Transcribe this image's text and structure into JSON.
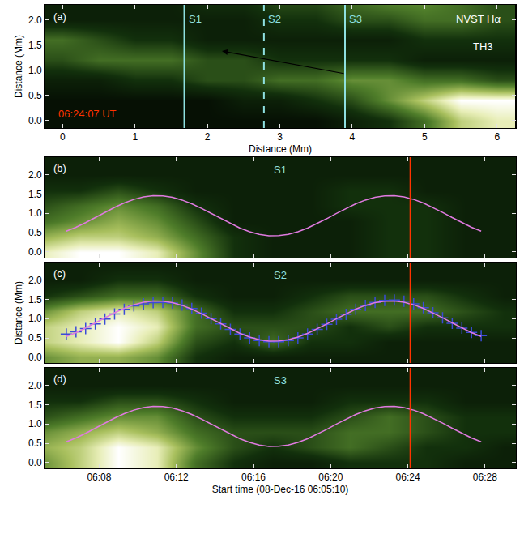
{
  "chart_data": [
    {
      "type": "heatmap",
      "panel_label": "(a)",
      "x_label": "Distance (Mm)",
      "y_label": "Distance (Mm)",
      "instrument_label": "NVST Hα",
      "feature_label": "TH3",
      "time_label": "06:24:07 UT",
      "time_label_color": "#ff3300",
      "xlim": [
        -0.25,
        6.26
      ],
      "ylim": [
        -0.15,
        2.3
      ],
      "xticks": [
        0,
        1,
        2,
        3,
        4,
        5,
        6
      ],
      "yticks": [
        {
          "value": 0,
          "label": "0.0"
        },
        0.5,
        {
          "value": 1,
          "label": "1.0"
        },
        1.5,
        {
          "value": 2,
          "label": "2.0"
        }
      ],
      "image": {
        "x": [
          0,
          0.5,
          1,
          1.5,
          2,
          2.5,
          3,
          3.5,
          4,
          4.5,
          5,
          5.5,
          6
        ],
        "y": [
          0,
          0.4,
          0.8,
          1.2,
          1.6,
          2.0,
          2.4
        ],
        "zlim": [
          0,
          10
        ],
        "z": [
          [
            1,
            1,
            1,
            1,
            1,
            1,
            1,
            1,
            2,
            3,
            5,
            8,
            9
          ],
          [
            1,
            1,
            1,
            1,
            1,
            2,
            2,
            3,
            4,
            6,
            8,
            10,
            10
          ],
          [
            2,
            2,
            3,
            3,
            4,
            4,
            5,
            5,
            6,
            6,
            5,
            5,
            4
          ],
          [
            4,
            5,
            5,
            5,
            4,
            4,
            3,
            3,
            3,
            3,
            2,
            2,
            2
          ],
          [
            5,
            4,
            3,
            3,
            2,
            2,
            2,
            2,
            2,
            2,
            3,
            3,
            3
          ],
          [
            2,
            2,
            2,
            2,
            2,
            2,
            3,
            3,
            4,
            4,
            5,
            5,
            4
          ],
          [
            2,
            2,
            2,
            2,
            3,
            3,
            4,
            4,
            5,
            6,
            6,
            5,
            4
          ]
        ]
      },
      "vertical_lines": [
        {
          "x": 1.68,
          "label": "S1",
          "line_style": "solid",
          "color": "#8ee0e0"
        },
        {
          "x": 2.78,
          "label": "S2",
          "line_style": "dashed",
          "color": "#8ee0e0"
        },
        {
          "x": 3.9,
          "label": "S3",
          "line_style": "solid",
          "color": "#8ee0e0"
        }
      ],
      "arrow": {
        "from": [
          3.9,
          0.93
        ],
        "to": [
          2.2,
          1.38
        ]
      }
    },
    {
      "type": "heatmap",
      "panel_label": "(b)",
      "slit_label": "S1",
      "slit_label_color": "#8ee0e0",
      "tick_labels": "y",
      "xlim": [
        5.17,
        29.6
      ],
      "ylim": [
        -0.15,
        2.45
      ],
      "xticks": [
        {
          "value": 8,
          "label": "06:08"
        },
        {
          "value": 12,
          "label": "06:12"
        },
        {
          "value": 16,
          "label": "06:16"
        },
        {
          "value": 20,
          "label": "06:20"
        },
        {
          "value": 24,
          "label": "06:24"
        },
        {
          "value": 28,
          "label": "06:28"
        }
      ],
      "yticks": [
        {
          "value": 0,
          "label": "0.0"
        },
        0.5,
        {
          "value": 1,
          "label": "1.0"
        },
        1.5,
        {
          "value": 2,
          "label": "2.0"
        }
      ],
      "image": {
        "x": [
          5,
          7,
          9,
          11,
          13,
          15,
          17,
          19,
          21,
          23,
          25,
          27,
          29
        ],
        "y": [
          0,
          0.4,
          0.8,
          1.2,
          1.6,
          2.0,
          2.4
        ],
        "zlim": [
          0,
          10
        ],
        "z": [
          [
            9,
            10,
            10,
            9,
            6,
            3,
            2,
            2,
            2,
            3,
            3,
            2,
            2
          ],
          [
            7,
            8,
            8,
            7,
            5,
            3,
            2,
            2,
            2,
            3,
            3,
            2,
            2
          ],
          [
            5,
            6,
            7,
            6,
            4,
            2,
            2,
            2,
            2,
            3,
            3,
            2,
            2
          ],
          [
            4,
            5,
            6,
            5,
            3,
            2,
            2,
            2,
            3,
            3,
            3,
            2,
            2
          ],
          [
            3,
            3,
            4,
            3,
            2,
            2,
            2,
            2,
            3,
            3,
            2,
            2,
            2
          ],
          [
            2,
            2,
            2,
            2,
            2,
            2,
            2,
            2,
            2,
            2,
            2,
            2,
            2
          ],
          [
            2,
            2,
            2,
            2,
            2,
            2,
            2,
            2,
            2,
            2,
            2,
            2,
            2
          ]
        ]
      },
      "x": [
        6.3,
        6.8,
        7.3,
        7.8,
        8.3,
        8.8,
        9.3,
        9.8,
        10.3,
        10.8,
        11.3,
        11.8,
        12.3,
        12.8,
        13.3,
        13.8,
        14.3,
        14.8,
        15.3,
        15.8,
        16.3,
        16.8,
        17.3,
        17.8,
        18.3,
        18.8,
        19.3,
        19.8,
        20.3,
        20.8,
        21.3,
        21.8,
        22.3,
        22.8,
        23.3,
        23.8,
        24.3,
        24.8,
        25.3,
        25.8,
        26.3,
        26.8,
        27.3,
        27.8
      ],
      "series": [
        {
          "type": "line",
          "line_style": "solid",
          "color": "#e07ae0",
          "values": [
            0.537,
            0.637,
            0.757,
            0.888,
            1.022,
            1.151,
            1.265,
            1.357,
            1.421,
            1.452,
            1.449,
            1.411,
            1.341,
            1.244,
            1.126,
            0.995,
            0.861,
            0.731,
            0.616,
            0.521,
            0.454,
            0.419,
            0.42,
            0.455,
            0.522,
            0.617,
            0.732,
            0.861,
            0.996,
            1.126,
            1.244,
            1.341,
            1.411,
            1.449,
            1.452,
            1.421,
            1.357,
            1.265,
            1.151,
            1.022,
            0.888,
            0.757,
            0.637,
            0.537
          ]
        }
      ],
      "time_marker": {
        "x": 24.12,
        "color": "#ff3300"
      }
    },
    {
      "type": "heatmap",
      "panel_label": "(c)",
      "slit_label": "S2",
      "slit_label_color": "#8ee0e0",
      "y_label": "Distance (Mm)",
      "tick_labels": "y",
      "xlim": [
        5.17,
        29.6
      ],
      "ylim": [
        -0.15,
        2.45
      ],
      "xticks": [
        {
          "value": 8,
          "label": "06:08"
        },
        {
          "value": 12,
          "label": "06:12"
        },
        {
          "value": 16,
          "label": "06:16"
        },
        {
          "value": 20,
          "label": "06:20"
        },
        {
          "value": 24,
          "label": "06:24"
        },
        {
          "value": 28,
          "label": "06:28"
        }
      ],
      "yticks": [
        {
          "value": 0,
          "label": "0.0"
        },
        0.5,
        {
          "value": 1,
          "label": "1.0"
        },
        1.5,
        {
          "value": 2,
          "label": "2.0"
        }
      ],
      "image": {
        "x": [
          5,
          7,
          9,
          11,
          13,
          15,
          17,
          19,
          21,
          23,
          25,
          27,
          29
        ],
        "y": [
          0,
          0.4,
          0.8,
          1.2,
          1.6,
          2.0,
          2.4
        ],
        "zlim": [
          0,
          10
        ],
        "z": [
          [
            6,
            7,
            7,
            6,
            3,
            2,
            2,
            2,
            2,
            2,
            2,
            2,
            2
          ],
          [
            8,
            9,
            10,
            8,
            4,
            3,
            5,
            3,
            3,
            2,
            2,
            2,
            2
          ],
          [
            8,
            9,
            10,
            9,
            5,
            4,
            4,
            4,
            3,
            4,
            3,
            3,
            3
          ],
          [
            6,
            8,
            9,
            8,
            5,
            3,
            3,
            4,
            5,
            5,
            5,
            4,
            3
          ],
          [
            3,
            4,
            5,
            5,
            3,
            2,
            2,
            3,
            4,
            4,
            4,
            3,
            2
          ],
          [
            2,
            2,
            3,
            3,
            2,
            2,
            2,
            2,
            2,
            2,
            2,
            2,
            2
          ],
          [
            2,
            2,
            2,
            2,
            2,
            2,
            2,
            2,
            2,
            2,
            2,
            2,
            2
          ]
        ]
      },
      "x": [
        6.3,
        6.8,
        7.3,
        7.8,
        8.3,
        8.8,
        9.3,
        9.8,
        10.3,
        10.8,
        11.3,
        11.8,
        12.3,
        12.8,
        13.3,
        13.8,
        14.3,
        14.8,
        15.3,
        15.8,
        16.3,
        16.8,
        17.3,
        17.8,
        18.3,
        18.8,
        19.3,
        19.8,
        20.3,
        20.8,
        21.3,
        21.8,
        22.3,
        22.8,
        23.3,
        23.8,
        24.3,
        24.8,
        25.3,
        25.8,
        26.3,
        26.8,
        27.3,
        27.8
      ],
      "series": [
        {
          "type": "scatter",
          "marker": "cross",
          "color": "#3a4bd8",
          "values": [
            0.6,
            0.66,
            0.74,
            0.86,
            0.99,
            1.12,
            1.24,
            1.33,
            1.38,
            1.41,
            1.42,
            1.4,
            1.35,
            1.26,
            1.14,
            1.0,
            0.86,
            0.72,
            0.6,
            0.5,
            0.43,
            0.4,
            0.4,
            0.43,
            0.5,
            0.6,
            0.72,
            0.85,
            0.98,
            1.11,
            1.24,
            1.34,
            1.42,
            1.47,
            1.48,
            1.45,
            1.38,
            1.28,
            1.15,
            1.02,
            0.88,
            0.75,
            0.64,
            0.56
          ]
        },
        {
          "type": "line",
          "line_style": "solid",
          "color": "#e07ae0",
          "values": [
            0.537,
            0.637,
            0.757,
            0.888,
            1.022,
            1.151,
            1.265,
            1.357,
            1.421,
            1.452,
            1.449,
            1.411,
            1.341,
            1.244,
            1.126,
            0.995,
            0.861,
            0.731,
            0.616,
            0.521,
            0.454,
            0.419,
            0.42,
            0.455,
            0.522,
            0.617,
            0.732,
            0.861,
            0.996,
            1.126,
            1.244,
            1.341,
            1.411,
            1.449,
            1.452,
            1.421,
            1.357,
            1.265,
            1.151,
            1.022,
            0.888,
            0.757,
            0.637,
            0.537
          ]
        }
      ],
      "time_marker": {
        "x": 24.12,
        "color": "#ff3300"
      }
    },
    {
      "type": "heatmap",
      "panel_label": "(d)",
      "slit_label": "S3",
      "slit_label_color": "#8ee0e0",
      "x_label": "Start time (08-Dec-16 06:05:10)",
      "xlim": [
        5.17,
        29.6
      ],
      "ylim": [
        -0.15,
        2.45
      ],
      "xticks": [
        {
          "value": 8,
          "label": "06:08"
        },
        {
          "value": 12,
          "label": "06:12"
        },
        {
          "value": 16,
          "label": "06:16"
        },
        {
          "value": 20,
          "label": "06:20"
        },
        {
          "value": 24,
          "label": "06:24"
        },
        {
          "value": 28,
          "label": "06:28"
        }
      ],
      "yticks": [
        {
          "value": 0,
          "label": "0.0"
        },
        0.5,
        {
          "value": 1,
          "label": "1.0"
        },
        1.5,
        {
          "value": 2,
          "label": "2.0"
        }
      ],
      "image": {
        "x": [
          5,
          7,
          9,
          11,
          13,
          15,
          17,
          19,
          21,
          23,
          25,
          27,
          29
        ],
        "y": [
          0,
          0.4,
          0.8,
          1.2,
          1.6,
          2.0,
          2.4
        ],
        "zlim": [
          0,
          10
        ],
        "z": [
          [
            6,
            8,
            10,
            9,
            5,
            3,
            2,
            2,
            3,
            3,
            3,
            2,
            2
          ],
          [
            7,
            8,
            10,
            9,
            6,
            4,
            3,
            4,
            5,
            4,
            3,
            3,
            2
          ],
          [
            6,
            7,
            8,
            7,
            5,
            4,
            4,
            4,
            5,
            5,
            4,
            3,
            3
          ],
          [
            4,
            5,
            6,
            6,
            4,
            3,
            3,
            3,
            4,
            5,
            4,
            3,
            3
          ],
          [
            3,
            3,
            4,
            4,
            3,
            2,
            2,
            2,
            3,
            3,
            3,
            2,
            2
          ],
          [
            2,
            2,
            2,
            2,
            2,
            2,
            2,
            2,
            2,
            2,
            2,
            2,
            2
          ],
          [
            2,
            2,
            2,
            2,
            2,
            2,
            2,
            2,
            2,
            2,
            2,
            2,
            2
          ]
        ]
      },
      "x": [
        6.3,
        6.8,
        7.3,
        7.8,
        8.3,
        8.8,
        9.3,
        9.8,
        10.3,
        10.8,
        11.3,
        11.8,
        12.3,
        12.8,
        13.3,
        13.8,
        14.3,
        14.8,
        15.3,
        15.8,
        16.3,
        16.8,
        17.3,
        17.8,
        18.3,
        18.8,
        19.3,
        19.8,
        20.3,
        20.8,
        21.3,
        21.8,
        22.3,
        22.8,
        23.3,
        23.8,
        24.3,
        24.8,
        25.3,
        25.8,
        26.3,
        26.8,
        27.3,
        27.8
      ],
      "series": [
        {
          "type": "line",
          "line_style": "solid",
          "color": "#e07ae0",
          "values": [
            0.537,
            0.637,
            0.757,
            0.888,
            1.022,
            1.151,
            1.265,
            1.357,
            1.421,
            1.452,
            1.449,
            1.411,
            1.341,
            1.244,
            1.126,
            0.995,
            0.861,
            0.731,
            0.616,
            0.521,
            0.454,
            0.419,
            0.42,
            0.455,
            0.522,
            0.617,
            0.732,
            0.861,
            0.996,
            1.126,
            1.244,
            1.341,
            1.411,
            1.449,
            1.452,
            1.421,
            1.357,
            1.265,
            1.151,
            1.022,
            0.888,
            0.757,
            0.637,
            0.537
          ]
        }
      ],
      "time_marker": {
        "x": 24.12,
        "color": "#ff3300"
      }
    }
  ]
}
